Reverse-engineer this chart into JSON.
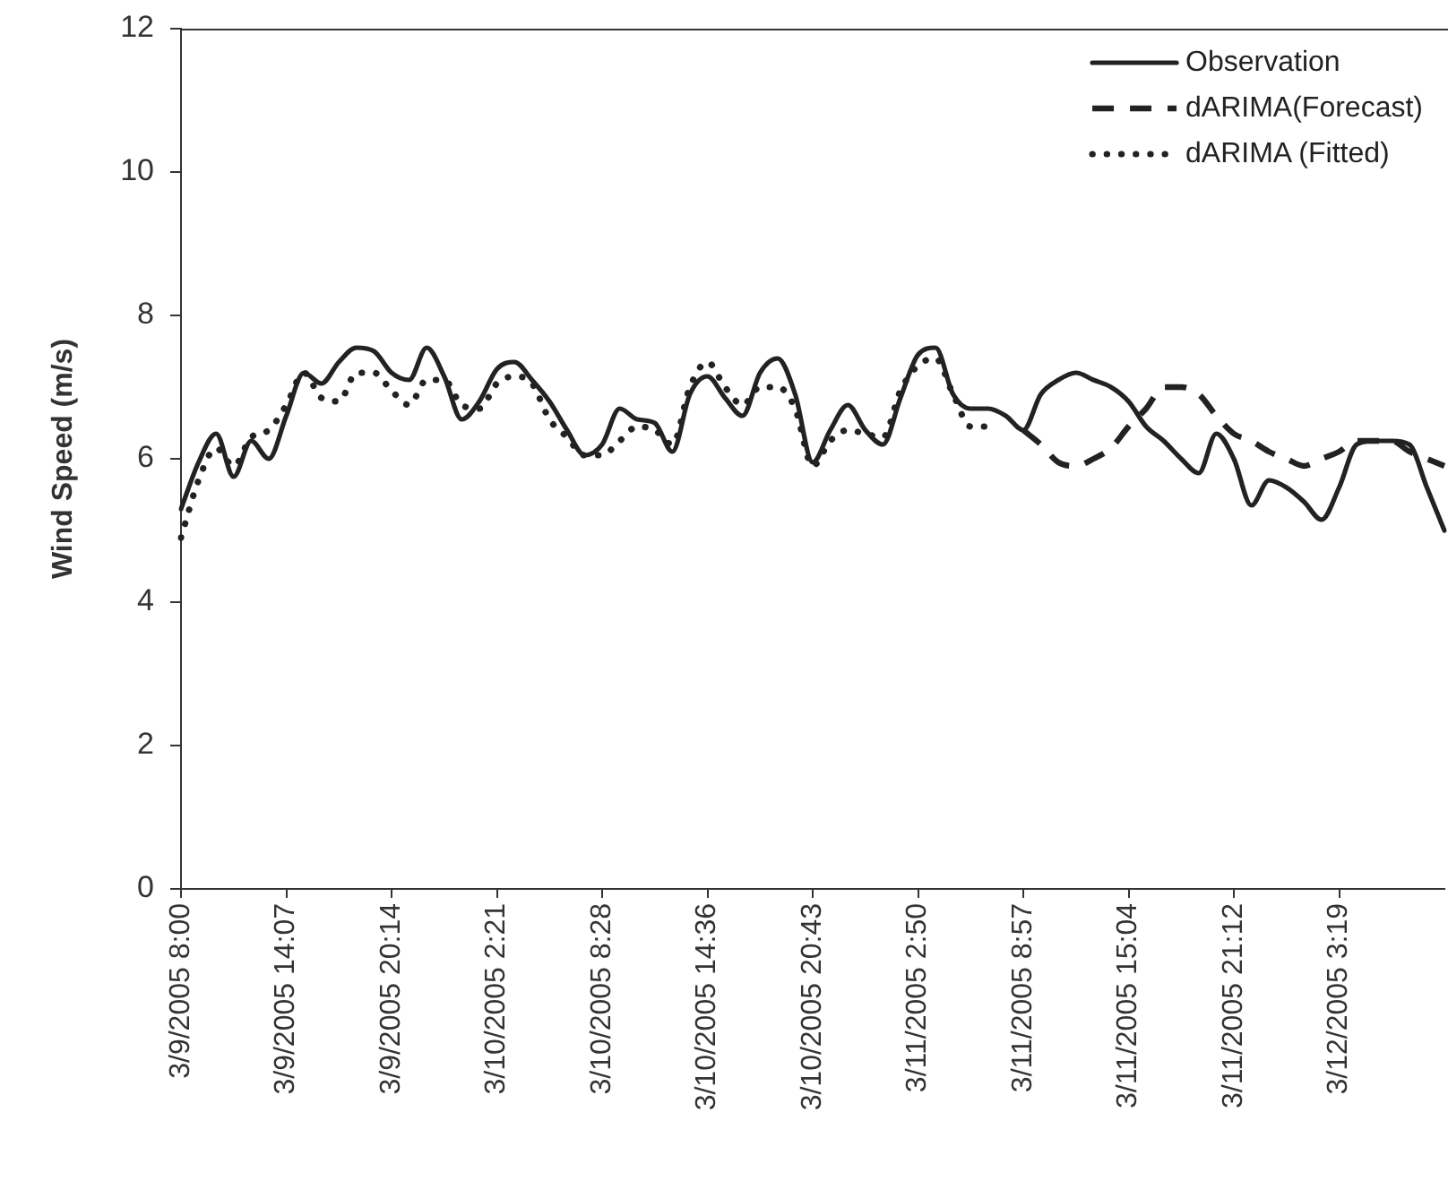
{
  "chart_data": {
    "type": "line",
    "ylabel": "Wind Speed (m/s)",
    "categories": [
      "3/9/2005 8:00",
      null,
      null,
      null,
      null,
      null,
      "3/9/2005 14:07",
      null,
      null,
      null,
      null,
      null,
      "3/9/2005 20:14",
      null,
      null,
      null,
      null,
      null,
      "3/10/2005 2:21",
      null,
      null,
      null,
      null,
      null,
      "3/10/2005 8:28",
      null,
      null,
      null,
      null,
      null,
      "3/10/2005 14:36",
      null,
      null,
      null,
      null,
      null,
      "3/10/2005 20:43",
      null,
      null,
      null,
      null,
      null,
      "3/11/2005 2:50",
      null,
      null,
      null,
      null,
      null,
      "3/11/2005 8:57",
      null,
      null,
      null,
      null,
      null,
      "3/11/2005 15:04",
      null,
      null,
      null,
      null,
      null,
      "3/11/2005 21:12",
      null,
      null,
      null,
      null,
      null,
      "3/12/2005 3:19",
      null,
      null,
      null,
      null,
      null,
      null
    ],
    "series": [
      {
        "name": "Observation",
        "color": "#222222",
        "line_style": "solid",
        "values": [
          5.3,
          5.95,
          6.35,
          5.75,
          6.25,
          6.0,
          6.6,
          7.2,
          7.05,
          7.35,
          7.55,
          7.5,
          7.2,
          7.1,
          7.55,
          7.15,
          6.55,
          6.8,
          7.25,
          7.35,
          7.1,
          6.8,
          6.4,
          6.05,
          6.2,
          6.7,
          6.55,
          6.5,
          6.1,
          6.9,
          7.15,
          6.85,
          6.6,
          7.2,
          7.4,
          6.9,
          5.95,
          6.4,
          6.75,
          6.4,
          6.2,
          6.85,
          7.45,
          7.55,
          6.9,
          6.7,
          6.7,
          6.6,
          6.4,
          6.9,
          7.1,
          7.2,
          7.1,
          7.0,
          6.8,
          6.45,
          6.25,
          6.0,
          5.8,
          6.35,
          6.0,
          5.35,
          5.7,
          5.6,
          5.4,
          5.15,
          5.6,
          6.2,
          6.25,
          6.25,
          6.2,
          5.6,
          5.0
        ]
      },
      {
        "name": "dARIMA(Forecast)",
        "color": "#222222",
        "line_style": "dashed",
        "values": [
          null,
          null,
          null,
          null,
          null,
          null,
          null,
          null,
          null,
          null,
          null,
          null,
          null,
          null,
          null,
          null,
          null,
          null,
          null,
          null,
          null,
          null,
          null,
          null,
          null,
          null,
          null,
          null,
          null,
          null,
          null,
          null,
          null,
          null,
          null,
          null,
          null,
          null,
          null,
          null,
          null,
          null,
          null,
          null,
          null,
          null,
          null,
          null,
          6.4,
          6.2,
          5.95,
          5.9,
          6.0,
          6.15,
          6.45,
          6.7,
          7.0,
          7.0,
          6.9,
          6.6,
          6.35,
          6.25,
          6.1,
          6.0,
          5.9,
          6.0,
          6.1,
          6.25,
          6.25,
          6.25,
          6.1,
          6.0,
          5.9
        ]
      },
      {
        "name": "dARIMA (Fitted)",
        "color": "#222222",
        "line_style": "dotted",
        "values": [
          4.9,
          5.7,
          6.15,
          5.9,
          6.3,
          6.4,
          6.75,
          7.2,
          6.85,
          6.8,
          7.2,
          7.2,
          6.95,
          6.75,
          7.1,
          7.1,
          6.75,
          6.7,
          7.05,
          7.15,
          7.05,
          6.55,
          6.3,
          6.05,
          6.05,
          6.25,
          6.45,
          6.4,
          6.2,
          7.0,
          7.35,
          7.0,
          6.75,
          7.0,
          7.0,
          6.7,
          5.9,
          6.25,
          6.4,
          6.35,
          6.3,
          6.95,
          7.3,
          7.4,
          6.9,
          6.45,
          6.45,
          null,
          null,
          null,
          null,
          null,
          null,
          null,
          null,
          null,
          null,
          null,
          null,
          null,
          null,
          null,
          null,
          null,
          null,
          null,
          null,
          null,
          null,
          null,
          null,
          null,
          null
        ]
      }
    ],
    "ylim": [
      0,
      12
    ],
    "yticks": [
      0,
      2,
      4,
      6,
      8,
      10,
      12
    ],
    "grid": false,
    "legend": "top right",
    "marker": "none"
  }
}
